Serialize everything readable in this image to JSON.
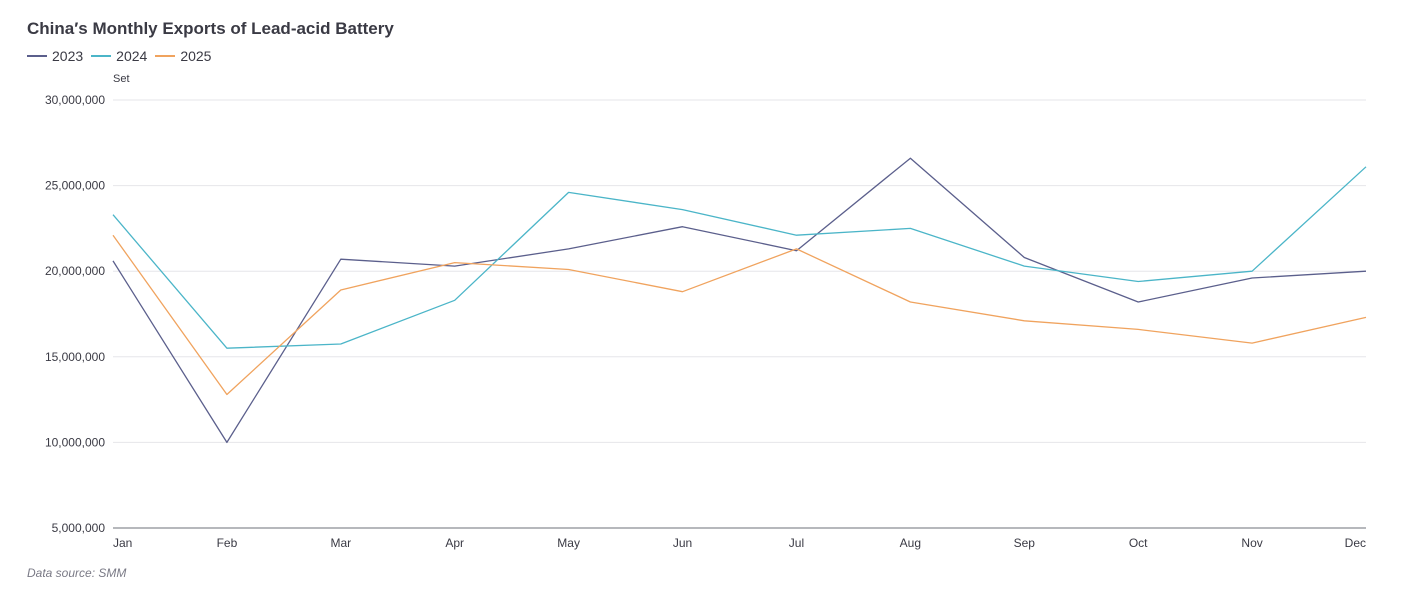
{
  "header": {
    "title": "China′s Monthly Exports of Lead-acid Battery",
    "unit": "Set",
    "source": "Data source:  SMM"
  },
  "chart_data": {
    "type": "line",
    "title": "China′s Monthly Exports of Lead-acid Battery",
    "xlabel": "",
    "ylabel": "Set",
    "categories": [
      "Jan",
      "Feb",
      "Mar",
      "Apr",
      "May",
      "Jun",
      "Jul",
      "Aug",
      "Sep",
      "Oct",
      "Nov",
      "Dec"
    ],
    "ylim": [
      5000000,
      30000000
    ],
    "yticks": [
      5000000,
      10000000,
      15000000,
      20000000,
      25000000,
      30000000
    ],
    "ytick_labels": [
      "5,000,000",
      "10,000,000",
      "15,000,000",
      "20,000,000",
      "25,000,000",
      "30,000,000"
    ],
    "grid": true,
    "legend_position": "top-left",
    "series": [
      {
        "name": "2023",
        "color": "#5b5f8c",
        "values": [
          20600000,
          10000000,
          20700000,
          20300000,
          21300000,
          22600000,
          21200000,
          26600000,
          20800000,
          18200000,
          19600000,
          20000000
        ]
      },
      {
        "name": "2024",
        "color": "#4bb5c8",
        "values": [
          23300000,
          15500000,
          15750000,
          18300000,
          24600000,
          23600000,
          22100000,
          22500000,
          20300000,
          19400000,
          20000000,
          26100000
        ]
      },
      {
        "name": "2025",
        "color": "#f0a35e",
        "values": [
          22100000,
          12800000,
          18900000,
          20500000,
          20100000,
          18800000,
          21300000,
          18200000,
          17100000,
          16600000,
          15800000,
          17300000
        ]
      }
    ]
  }
}
